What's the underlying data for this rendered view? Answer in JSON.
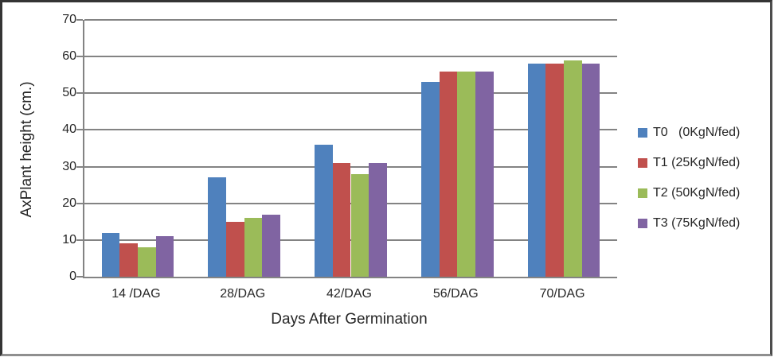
{
  "chart_data": {
    "type": "bar",
    "title": "",
    "categories": [
      "14 /DAG",
      "28/DAG",
      "42/DAG",
      "56/DAG",
      "70/DAG"
    ],
    "series": [
      {
        "name": "T0   (0KgN/fed)",
        "color": "#4F81BD",
        "values": [
          12,
          27,
          36,
          53,
          58
        ]
      },
      {
        "name": "T1 (25KgN/fed)",
        "color": "#C0504D",
        "values": [
          9,
          15,
          31,
          56,
          58
        ]
      },
      {
        "name": "T2 (50KgN/fed)",
        "color": "#9BBB59",
        "values": [
          8,
          16,
          28,
          56,
          59
        ]
      },
      {
        "name": "T3 (75KgN/fed)",
        "color": "#8064A2",
        "values": [
          11,
          17,
          31,
          56,
          58
        ]
      }
    ],
    "xlabel": "Days After Germination",
    "ylabel": "AxPlant height (cm.)",
    "ylim": [
      0,
      70
    ],
    "yticks": [
      0,
      10,
      20,
      30,
      40,
      50,
      60,
      70
    ],
    "grid": true,
    "legend_position": "right",
    "gridline_color": "#838383",
    "axis_color": "#838383",
    "text_color": "#262626"
  }
}
